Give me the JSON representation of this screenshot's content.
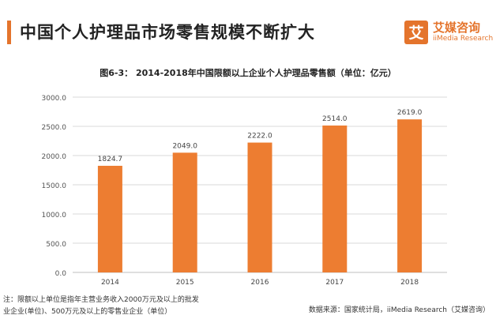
{
  "header": {
    "title": "中国个人护理品市场零售规模不断扩大",
    "logo_brand": "艾媒咨询",
    "logo_sub": "iiMedia Research",
    "logo_glyph": "艾"
  },
  "colors": {
    "accent": "#e4742c",
    "bar": "#ed7d31",
    "grid": "#d9d9d9"
  },
  "chart_data": {
    "type": "bar",
    "title": "图6-3： 2014-2018年中国限额以上企业个人护理品零售额（单位：亿元）",
    "categories": [
      "2014",
      "2015",
      "2016",
      "2017",
      "2018"
    ],
    "values": [
      1824.7,
      2049.0,
      2222.0,
      2514.0,
      2619.0
    ],
    "value_labels": [
      "1824.7",
      "2049.0",
      "2222.0",
      "2514.0",
      "2619.0"
    ],
    "ylim": [
      0,
      3000
    ],
    "yticks": [
      "0.0",
      "500.0",
      "1000.0",
      "1500.0",
      "2000.0",
      "2500.0",
      "3000.0"
    ],
    "grid": true,
    "xlabel": "",
    "ylabel": ""
  },
  "footer": {
    "note_line1": "注：限额以上单位是指年主营业务收入2000万元及以上的批发",
    "note_line2": "业企业(单位)、500万元及以上的零售业企业（单位）",
    "source": "数据来源：国家统计局，iiMedia Research（艾媒咨询）"
  }
}
